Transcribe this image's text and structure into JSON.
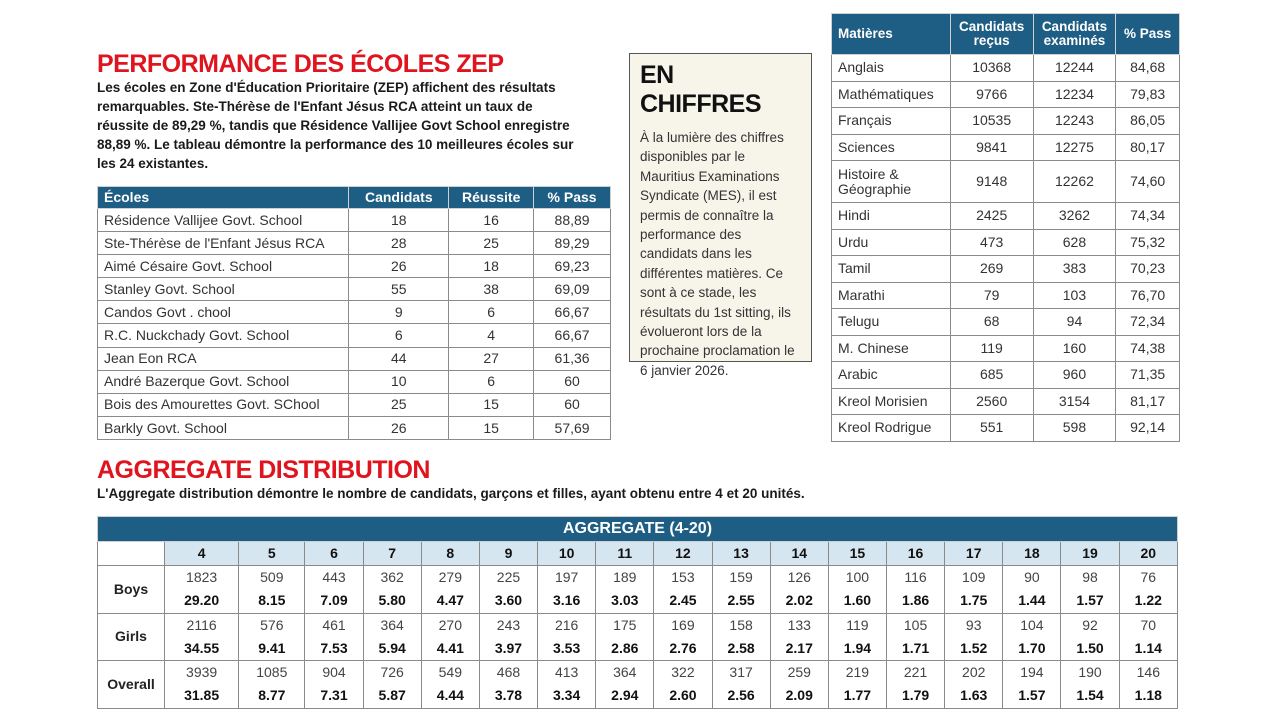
{
  "zep": {
    "title": "PERFORMANCE DES ÉCOLES ZEP",
    "intro_lines": [
      "Les écoles en Zone d'Éducation Prioritaire (ZEP) affichent des résultats",
      "remarquables. Ste-Thérèse de l'Enfant Jésus RCA atteint un taux de",
      "réussite de 89,29 %, tandis que Résidence Vallijee Govt School enregistre",
      "88,89 %. Le tableau démontre la performance des 10 meilleures écoles sur",
      "les 24 existantes."
    ],
    "headers": [
      "Écoles",
      "Candidats",
      "Réussite",
      "% Pass"
    ],
    "rows": [
      [
        "Résidence Vallijee Govt. School",
        "18",
        "16",
        "88,89"
      ],
      [
        "Ste-Thérèse de l'Enfant Jésus RCA",
        "28",
        "25",
        "89,29"
      ],
      [
        "Aimé Césaire Govt. School",
        "26",
        "18",
        "69,23"
      ],
      [
        "Stanley Govt. School",
        "55",
        "38",
        "69,09"
      ],
      [
        "Candos Govt . chool",
        "9",
        "6",
        "66,67"
      ],
      [
        "R.C. Nuckchady Govt. School",
        "6",
        "4",
        "66,67"
      ],
      [
        "Jean Eon RCA",
        "44",
        "27",
        "61,36"
      ],
      [
        "André Bazerque Govt. School",
        "10",
        "6",
        "60"
      ],
      [
        "Bois des Amourettes Govt. SChool",
        "25",
        "15",
        "60"
      ],
      [
        "Barkly Govt. School",
        "26",
        "15",
        "57,69"
      ]
    ]
  },
  "chiffres": {
    "title": "EN CHIFFRES",
    "body": "À la lumière des chiffres disponibles par le Mauritius Examinations Syndicate (MES), il est permis de connaître la performance des candidats dans les différentes matières. Ce sont à ce stade, les résultats du 1st sitting, ils évolueront lors de la prochaine proclamation le 6 janvier 2026."
  },
  "subjects": {
    "headers": [
      "Matières",
      "Candidats reçus",
      "Candidats examinés",
      "% Pass"
    ],
    "rows": [
      [
        "Anglais",
        "10368",
        "12244",
        "84,68"
      ],
      [
        "Mathématiques",
        "9766",
        "12234",
        "79,83"
      ],
      [
        "Français",
        "10535",
        "12243",
        "86,05"
      ],
      [
        "Sciences",
        "9841",
        "12275",
        "80,17"
      ],
      [
        "Histoire & Géographie",
        "9148",
        "12262",
        "74,60"
      ],
      [
        "Hindi",
        "2425",
        "3262",
        "74,34"
      ],
      [
        "Urdu",
        "473",
        "628",
        "75,32"
      ],
      [
        "Tamil",
        "269",
        "383",
        "70,23"
      ],
      [
        "Marathi",
        "79",
        "103",
        "76,70"
      ],
      [
        "Telugu",
        "68",
        "94",
        "72,34"
      ],
      [
        "M. Chinese",
        "119",
        "160",
        "74,38"
      ],
      [
        "Arabic",
        "685",
        "960",
        "71,35"
      ],
      [
        "Kreol Morisien",
        "2560",
        "3154",
        "81,17"
      ],
      [
        "Kreol Rodrigue",
        "551",
        "598",
        "92,14"
      ]
    ]
  },
  "aggregate": {
    "title": "AGGREGATE DISTRIBUTION",
    "intro": "L'Aggregate distribution démontre le nombre de candidats, garçons et filles, ayant obtenu entre 4 et 20 unités.",
    "table_title": "AGGREGATE (4-20)",
    "units": [
      "4",
      "5",
      "6",
      "7",
      "8",
      "9",
      "10",
      "11",
      "12",
      "13",
      "14",
      "15",
      "16",
      "17",
      "18",
      "19",
      "20"
    ],
    "groups": [
      {
        "label": "Boys",
        "counts": [
          "1823",
          "509",
          "443",
          "362",
          "279",
          "225",
          "197",
          "189",
          "153",
          "159",
          "126",
          "100",
          "116",
          "109",
          "90",
          "98",
          "76"
        ],
        "percents": [
          "29.20",
          "8.15",
          "7.09",
          "5.80",
          "4.47",
          "3.60",
          "3.16",
          "3.03",
          "2.45",
          "2.55",
          "2.02",
          "1.60",
          "1.86",
          "1.75",
          "1.44",
          "1.57",
          "1.22"
        ]
      },
      {
        "label": "Girls",
        "counts": [
          "2116",
          "576",
          "461",
          "364",
          "270",
          "243",
          "216",
          "175",
          "169",
          "158",
          "133",
          "119",
          "105",
          "93",
          "104",
          "92",
          "70"
        ],
        "percents": [
          "34.55",
          "9.41",
          "7.53",
          "5.94",
          "4.41",
          "3.97",
          "3.53",
          "2.86",
          "2.76",
          "2.58",
          "2.17",
          "1.94",
          "1.71",
          "1.52",
          "1.70",
          "1.50",
          "1.14"
        ]
      },
      {
        "label": "Overall",
        "counts": [
          "3939",
          "1085",
          "904",
          "726",
          "549",
          "468",
          "413",
          "364",
          "322",
          "317",
          "259",
          "219",
          "221",
          "202",
          "194",
          "190",
          "146"
        ],
        "percents": [
          "31.85",
          "8.77",
          "7.31",
          "5.87",
          "4.44",
          "3.78",
          "3.34",
          "2.94",
          "2.60",
          "2.56",
          "2.09",
          "1.77",
          "1.79",
          "1.63",
          "1.57",
          "1.54",
          "1.18"
        ]
      }
    ]
  }
}
